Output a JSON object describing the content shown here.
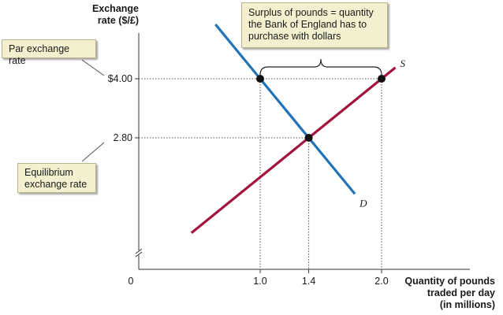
{
  "chart_data": {
    "type": "line",
    "y_axis": {
      "title_lines": [
        "Exchange",
        "rate ($/£)"
      ]
    },
    "x_axis": {
      "title_lines": [
        "Quantity of pounds",
        "traded per day",
        "(in millions)"
      ],
      "origin_label": "0"
    },
    "y_ticks": [
      {
        "value": 4.0,
        "label": "$4.00"
      },
      {
        "value": 2.8,
        "label": "2.80"
      }
    ],
    "x_ticks": [
      {
        "value": 1.0,
        "label": "1.0"
      },
      {
        "value": 1.4,
        "label": "1.4"
      },
      {
        "value": 2.0,
        "label": "2.0"
      }
    ],
    "series": [
      {
        "name": "D",
        "color": "#1f73b7",
        "points": [
          [
            1.0,
            4.0
          ],
          [
            1.4,
            2.8
          ]
        ]
      },
      {
        "name": "S",
        "color": "#a3133c",
        "points": [
          [
            1.4,
            2.8
          ],
          [
            2.0,
            4.0
          ]
        ]
      }
    ],
    "marked_points": [
      [
        1.0,
        4.0
      ],
      [
        1.4,
        2.8
      ],
      [
        2.0,
        4.0
      ]
    ],
    "axis_break": true
  },
  "annotations": {
    "surplus_lines": [
      "Surplus of pounds = quantity",
      "the Bank of England has to",
      "purchase with dollars"
    ],
    "par_label": "Par exchange rate",
    "equilibrium_lines": [
      "Equilibrium",
      "exchange rate"
    ]
  }
}
